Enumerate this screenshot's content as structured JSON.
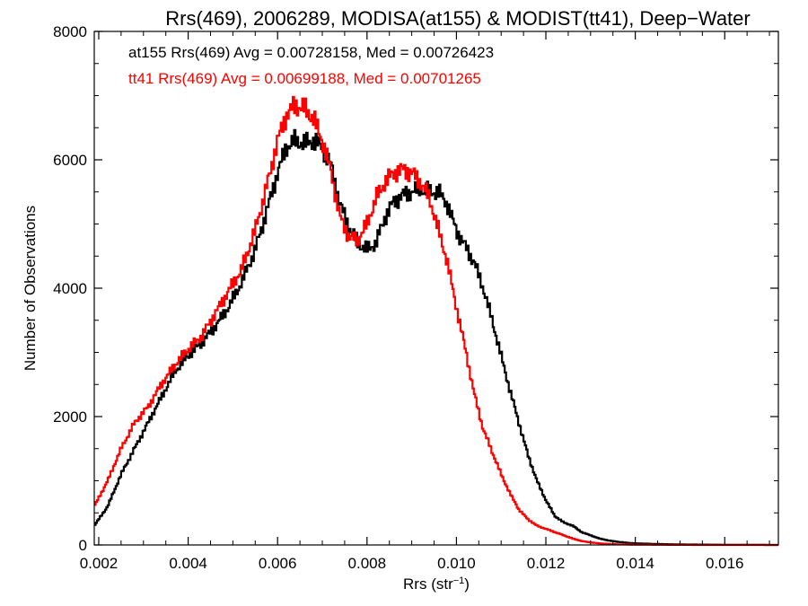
{
  "chart_data": {
    "type": "line",
    "title": "Rrs(469), 2006289, MODISA(at155) & MODIST(tt41), Deep−Water",
    "xlabel": "Rrs (str",
    "xlabel_sup": "−1",
    "xlabel_close": ")",
    "ylabel": "Number of Observations",
    "xlim": [
      0.0019,
      0.0172
    ],
    "ylim": [
      0,
      8000
    ],
    "x_ticks": [
      0.002,
      0.004,
      0.006,
      0.008,
      0.01,
      0.012,
      0.014,
      0.016
    ],
    "x_tick_labels": [
      "0.002",
      "0.004",
      "0.006",
      "0.008",
      "0.010",
      "0.012",
      "0.014",
      "0.016"
    ],
    "y_ticks": [
      0,
      2000,
      4000,
      6000,
      8000
    ],
    "y_tick_labels": [
      "0",
      "2000",
      "4000",
      "6000",
      "8000"
    ],
    "annotations": [
      {
        "text": "at155 Rrs(469) Avg = 0.00728158, Med = 0.00726423",
        "color": "#000000"
      },
      {
        "text": "tt41 Rrs(469) Avg = 0.00699188, Med = 0.00701265",
        "color": "#ff0000"
      }
    ],
    "series": [
      {
        "color": "#000000",
        "x": [
          0.0019,
          0.0022,
          0.0025,
          0.0028,
          0.0031,
          0.0034,
          0.0037,
          0.004,
          0.0043,
          0.0046,
          0.0049,
          0.0052,
          0.0055,
          0.0058,
          0.006,
          0.0062,
          0.0064,
          0.0066,
          0.0068,
          0.007,
          0.0072,
          0.0074,
          0.0076,
          0.0078,
          0.008,
          0.0082,
          0.0084,
          0.0086,
          0.0088,
          0.009,
          0.0092,
          0.0094,
          0.0096,
          0.0098,
          0.01,
          0.0102,
          0.0104,
          0.0106,
          0.0108,
          0.011,
          0.0112,
          0.0114,
          0.0116,
          0.0118,
          0.012,
          0.0122,
          0.0124,
          0.0126,
          0.0128,
          0.013,
          0.0132,
          0.0134,
          0.0136,
          0.0138,
          0.014,
          0.0145,
          0.015,
          0.016,
          0.0172
        ],
        "y": [
          300,
          600,
          1100,
          1500,
          1900,
          2300,
          2700,
          2950,
          3150,
          3400,
          3700,
          4100,
          4600,
          5300,
          5800,
          6200,
          6300,
          6250,
          6300,
          6200,
          5900,
          5300,
          4950,
          4700,
          4600,
          4700,
          5100,
          5350,
          5450,
          5500,
          5550,
          5500,
          5500,
          5300,
          4900,
          4650,
          4400,
          4000,
          3500,
          2950,
          2400,
          1900,
          1400,
          1000,
          700,
          450,
          350,
          300,
          200,
          150,
          100,
          70,
          50,
          35,
          25,
          15,
          8,
          3,
          0
        ]
      },
      {
        "color": "#ff0000",
        "x": [
          0.0019,
          0.0022,
          0.0025,
          0.0028,
          0.0031,
          0.0034,
          0.0037,
          0.004,
          0.0043,
          0.0046,
          0.0049,
          0.0052,
          0.0055,
          0.0058,
          0.006,
          0.0062,
          0.0064,
          0.0066,
          0.0068,
          0.007,
          0.0072,
          0.0074,
          0.0076,
          0.0078,
          0.008,
          0.0082,
          0.0084,
          0.0086,
          0.0088,
          0.009,
          0.0092,
          0.0094,
          0.0096,
          0.0098,
          0.01,
          0.0102,
          0.0104,
          0.0106,
          0.0108,
          0.011,
          0.0112,
          0.0114,
          0.0116,
          0.0118,
          0.012,
          0.0122,
          0.0124,
          0.0126,
          0.0128,
          0.013,
          0.0132,
          0.0134,
          0.0136,
          0.0138,
          0.014,
          0.0145,
          0.015,
          0.016,
          0.0172
        ],
        "y": [
          600,
          1000,
          1500,
          1900,
          2150,
          2500,
          2800,
          3050,
          3250,
          3600,
          3950,
          4300,
          4900,
          5700,
          6300,
          6700,
          6850,
          6800,
          6650,
          6300,
          5800,
          5100,
          4800,
          4750,
          5000,
          5400,
          5650,
          5800,
          5850,
          5800,
          5650,
          5400,
          4900,
          4400,
          3700,
          3050,
          2350,
          1800,
          1450,
          1100,
          800,
          550,
          400,
          300,
          250,
          200,
          150,
          100,
          60,
          40,
          25,
          15,
          10,
          8,
          5,
          3,
          1,
          0,
          0
        ]
      }
    ]
  }
}
